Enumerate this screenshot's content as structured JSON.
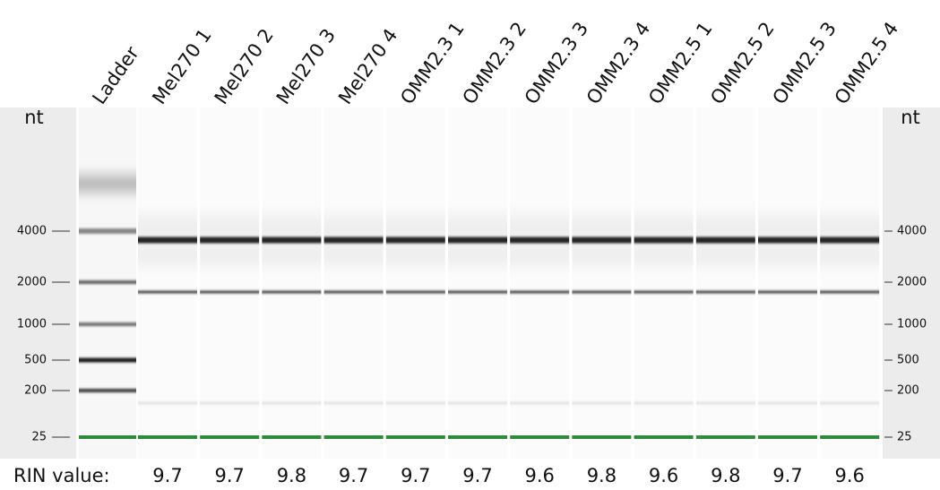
{
  "axis_label": "nt",
  "lanes": [
    "Ladder",
    "Mel270 1",
    "Mel270 2",
    "Mel270 3",
    "Mel270 4",
    "OMM2.3 1",
    "OMM2.3 2",
    "OMM2.3 3",
    "OMM2.3 4",
    "OMM2.5 1",
    "OMM2.5 2",
    "OMM2.5 3",
    "OMM2.5 4"
  ],
  "ticks": [
    "4000",
    "2000",
    "1000",
    "500",
    "200",
    "25"
  ],
  "rin": {
    "label": "RIN value:",
    "values": [
      "9.7",
      "9.7",
      "9.8",
      "9.7",
      "9.7",
      "9.7",
      "9.6",
      "9.8",
      "9.6",
      "9.8",
      "9.7",
      "9.6"
    ]
  }
}
